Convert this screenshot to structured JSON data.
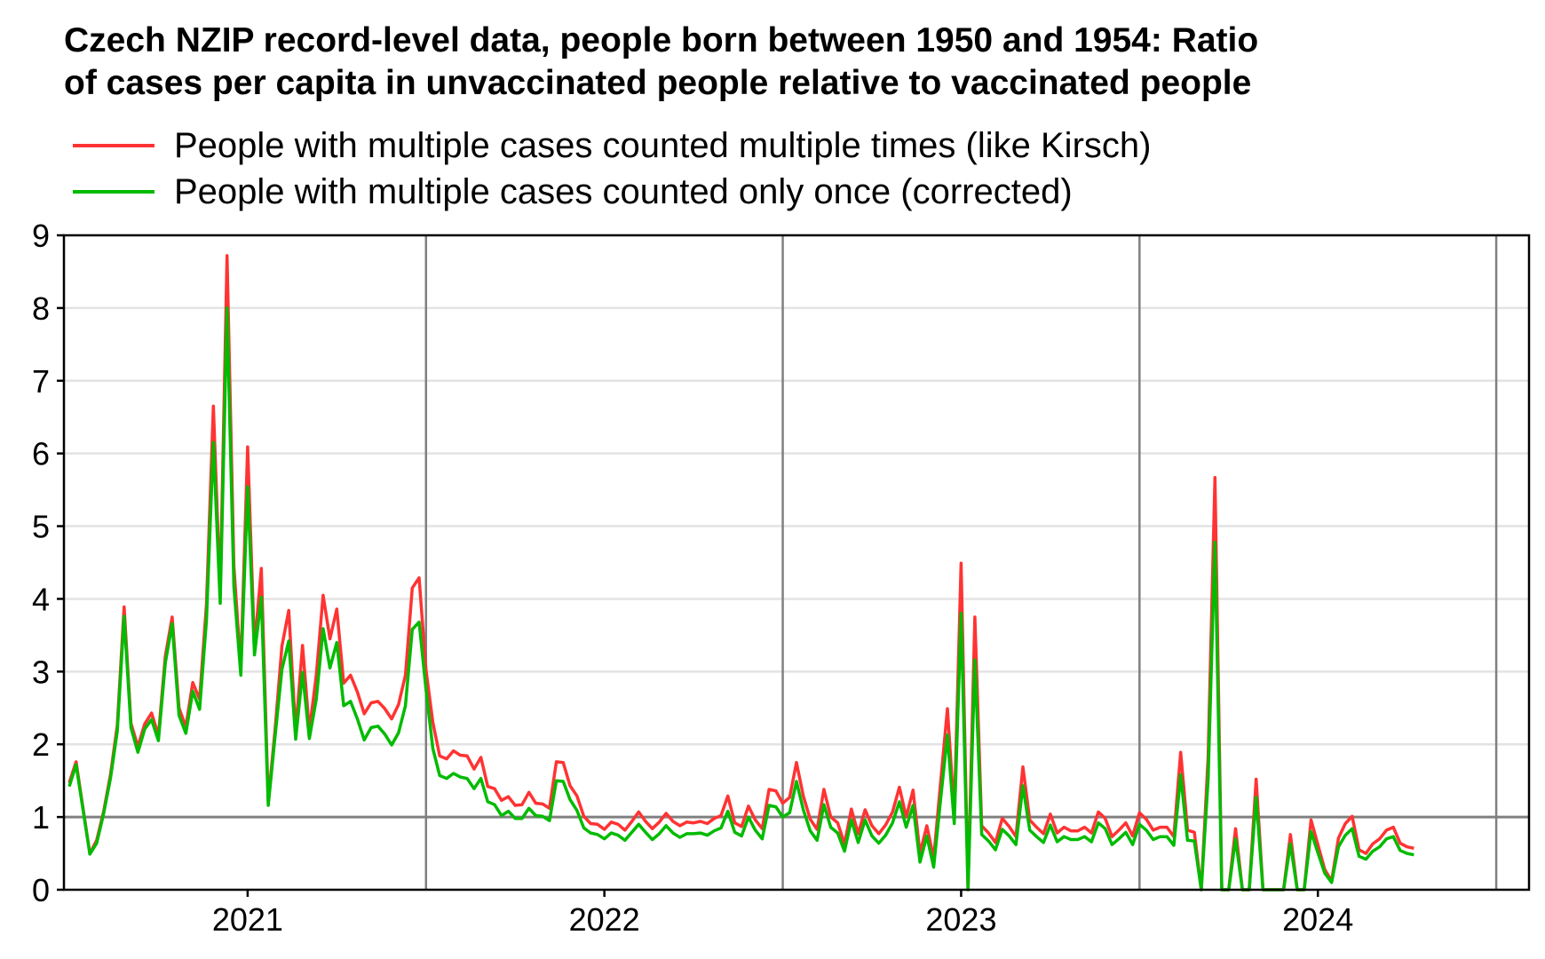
{
  "chart_data": {
    "type": "line",
    "title": [
      "Czech NZIP record-level data, people born between 1950 and 1954: Ratio",
      "of cases per capita in unvaccinated people relative to vaccinated people"
    ],
    "xlabel": "",
    "ylabel": "",
    "x_ticks": [
      "2021",
      "2022",
      "2023",
      "2024"
    ],
    "y_ticks": [
      "0",
      "1",
      "2",
      "3",
      "4",
      "5",
      "6",
      "7",
      "8",
      "9"
    ],
    "ylim": [
      0,
      9
    ],
    "x_range_weeks": [
      0,
      212
    ],
    "year_start_weeks": [
      0,
      52,
      104,
      156,
      208
    ],
    "grid": "horizontal light gray gridlines, vertical gray lines at year boundaries, dark reference line at y = 1",
    "legend_position": "top-left",
    "series": [
      {
        "name": "People with multiple cases counted multiple times (like Kirsch)",
        "color": "#ff3333",
        "values": [
          1.47,
          1.76,
          1.12,
          0.5,
          0.68,
          1.07,
          1.58,
          2.26,
          3.89,
          2.29,
          1.97,
          2.28,
          2.43,
          2.12,
          3.21,
          3.75,
          2.5,
          2.24,
          2.85,
          2.62,
          3.92,
          6.65,
          4.07,
          8.72,
          4.45,
          3.05,
          6.09,
          3.33,
          4.42,
          1.22,
          2.2,
          3.35,
          3.84,
          2.17,
          3.36,
          2.19,
          2.95,
          4.05,
          3.45,
          3.86,
          2.84,
          2.95,
          2.72,
          2.42,
          2.57,
          2.59,
          2.49,
          2.35,
          2.55,
          2.95,
          4.15,
          4.29,
          3.02,
          2.3,
          1.84,
          1.8,
          1.91,
          1.85,
          1.84,
          1.66,
          1.82,
          1.42,
          1.39,
          1.23,
          1.28,
          1.16,
          1.17,
          1.34,
          1.19,
          1.18,
          1.12,
          1.76,
          1.75,
          1.43,
          1.29,
          1.01,
          0.91,
          0.9,
          0.83,
          0.93,
          0.9,
          0.82,
          0.94,
          1.07,
          0.94,
          0.84,
          0.93,
          1.05,
          0.94,
          0.88,
          0.93,
          0.92,
          0.94,
          0.91,
          0.98,
          1.02,
          1.29,
          0.92,
          0.87,
          1.15,
          0.96,
          0.84,
          1.38,
          1.36,
          1.19,
          1.27,
          1.75,
          1.29,
          0.97,
          0.83,
          1.38,
          1.0,
          0.92,
          0.63,
          1.11,
          0.77,
          1.1,
          0.88,
          0.77,
          0.89,
          1.07,
          1.41,
          1.0,
          1.37,
          0.5,
          0.88,
          0.43,
          1.47,
          2.49,
          1.05,
          4.49,
          0.0,
          3.75,
          0.88,
          0.78,
          0.65,
          0.98,
          0.87,
          0.73,
          1.69,
          0.96,
          0.86,
          0.77,
          1.04,
          0.78,
          0.86,
          0.81,
          0.81,
          0.86,
          0.78,
          1.07,
          0.98,
          0.73,
          0.82,
          0.92,
          0.74,
          1.06,
          0.97,
          0.82,
          0.86,
          0.86,
          0.73,
          1.89,
          0.82,
          0.79,
          0.0,
          1.82,
          5.67,
          0.0,
          0.0,
          0.84,
          0.0,
          0.0,
          1.52,
          0.0,
          0.0,
          0.0,
          0.0,
          0.76,
          0.0,
          0.0,
          0.96,
          0.62,
          0.28,
          0.12,
          0.71,
          0.91,
          1.01,
          0.55,
          0.5,
          0.63,
          0.7,
          0.82,
          0.86,
          0.64,
          0.59,
          0.57
        ],
        "x_start_week": 0
      },
      {
        "name": "People with multiple cases counted only once (corrected)",
        "color": "#00bb00",
        "values": [
          1.42,
          1.72,
          1.1,
          0.49,
          0.64,
          1.04,
          1.53,
          2.18,
          3.76,
          2.23,
          1.89,
          2.21,
          2.34,
          2.05,
          3.12,
          3.66,
          2.4,
          2.15,
          2.73,
          2.48,
          3.7,
          6.15,
          3.94,
          8.0,
          4.17,
          2.95,
          5.54,
          3.23,
          4.02,
          1.16,
          2.11,
          3.03,
          3.42,
          2.07,
          2.99,
          2.08,
          2.62,
          3.59,
          3.05,
          3.4,
          2.53,
          2.59,
          2.35,
          2.06,
          2.23,
          2.25,
          2.14,
          1.99,
          2.16,
          2.53,
          3.58,
          3.68,
          2.75,
          1.94,
          1.57,
          1.53,
          1.6,
          1.55,
          1.53,
          1.39,
          1.53,
          1.21,
          1.17,
          1.02,
          1.08,
          0.98,
          0.98,
          1.12,
          1.02,
          1.01,
          0.95,
          1.5,
          1.49,
          1.24,
          1.09,
          0.85,
          0.78,
          0.76,
          0.7,
          0.78,
          0.75,
          0.68,
          0.79,
          0.9,
          0.79,
          0.69,
          0.77,
          0.88,
          0.78,
          0.72,
          0.77,
          0.77,
          0.78,
          0.75,
          0.81,
          0.85,
          1.08,
          0.79,
          0.74,
          1.0,
          0.82,
          0.7,
          1.16,
          1.14,
          1.0,
          1.06,
          1.49,
          1.1,
          0.81,
          0.68,
          1.17,
          0.86,
          0.78,
          0.53,
          0.96,
          0.65,
          0.96,
          0.74,
          0.64,
          0.75,
          0.92,
          1.21,
          0.86,
          1.16,
          0.38,
          0.74,
          0.31,
          1.24,
          2.13,
          0.91,
          3.8,
          0.0,
          3.16,
          0.76,
          0.67,
          0.55,
          0.83,
          0.74,
          0.62,
          1.43,
          0.82,
          0.73,
          0.65,
          0.89,
          0.66,
          0.73,
          0.69,
          0.69,
          0.73,
          0.66,
          0.92,
          0.84,
          0.62,
          0.7,
          0.79,
          0.62,
          0.9,
          0.82,
          0.69,
          0.73,
          0.73,
          0.61,
          1.58,
          0.68,
          0.67,
          0.0,
          1.52,
          4.78,
          0.0,
          0.0,
          0.7,
          0.0,
          0.0,
          1.27,
          0.0,
          0.0,
          0.0,
          0.0,
          0.63,
          0.0,
          0.0,
          0.8,
          0.51,
          0.23,
          0.1,
          0.59,
          0.75,
          0.84,
          0.46,
          0.42,
          0.53,
          0.59,
          0.7,
          0.73,
          0.54,
          0.5,
          0.48
        ],
        "x_start_week": 0
      }
    ]
  }
}
